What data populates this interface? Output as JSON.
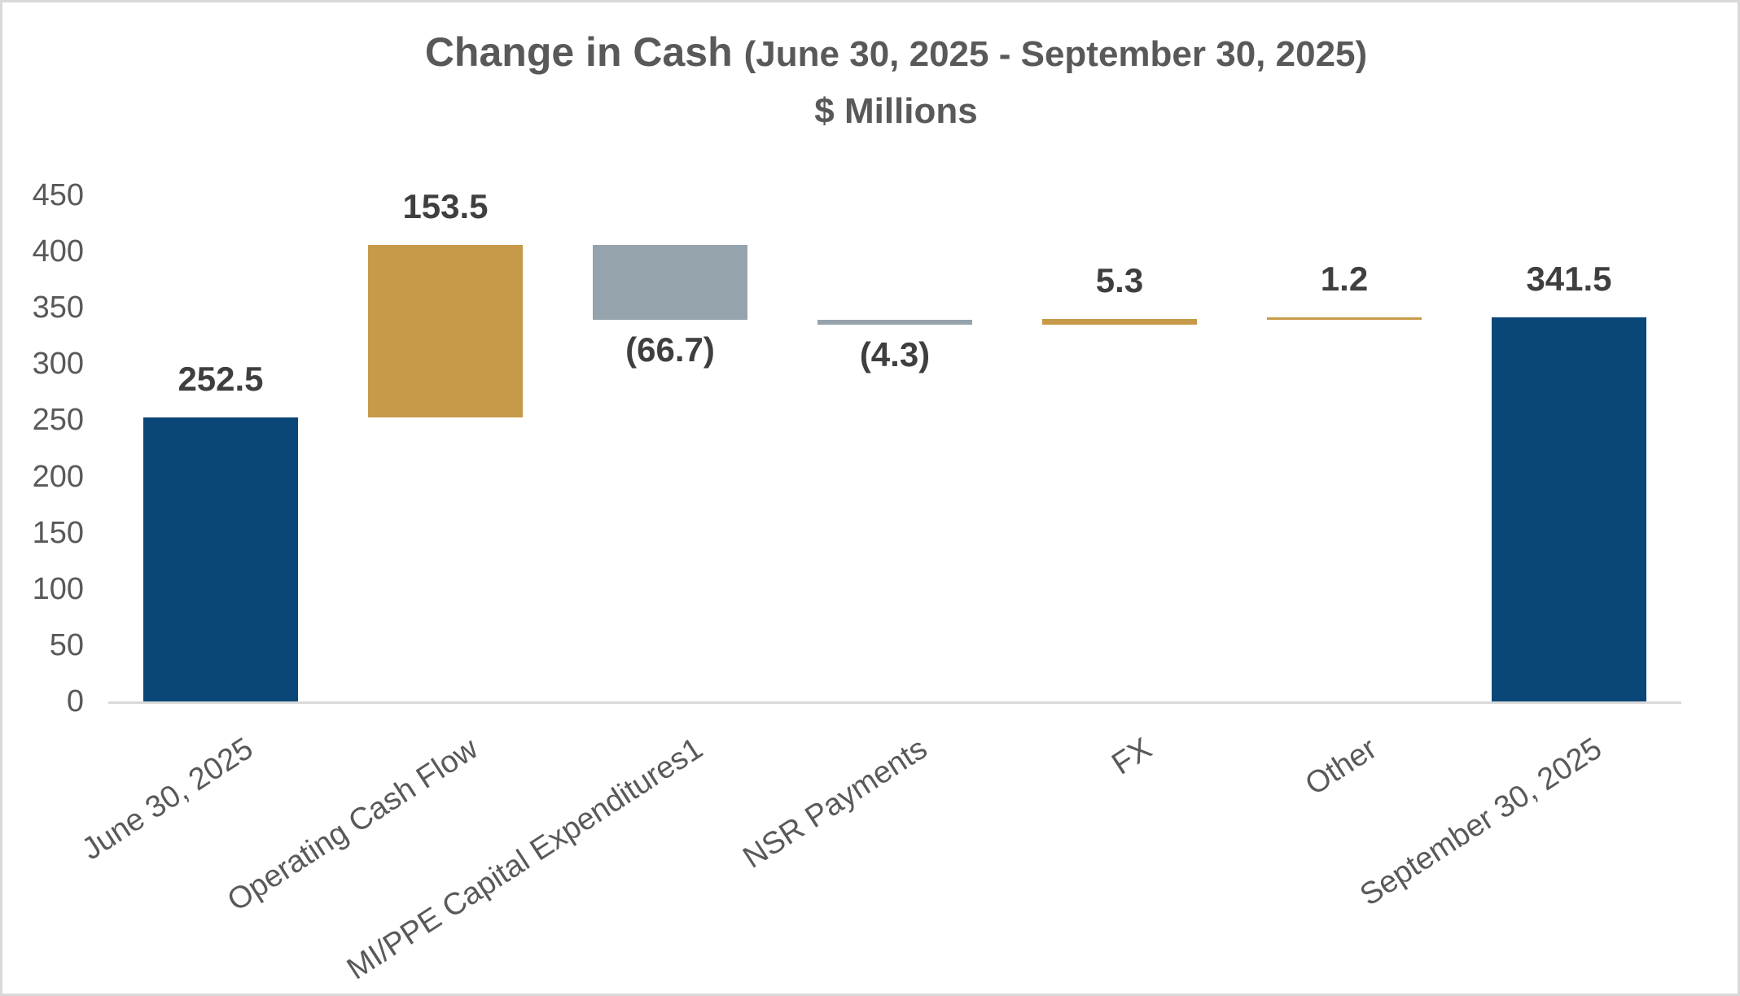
{
  "page": {
    "background_color": "#ffffff",
    "border_color": "#d9d9d9"
  },
  "chart_data": {
    "type": "bar",
    "subtype": "waterfall",
    "title": "Change in Cash",
    "title_period": "(June 30, 2025 - September 30, 2025)",
    "subtitle": "$ Millions",
    "categories": [
      "June 30, 2025",
      "Operating Cash Flow",
      "MI/PPE Capital Expenditures1",
      "NSR Payments",
      "FX",
      "Other",
      "September 30, 2025"
    ],
    "bars": [
      {
        "category": "June 30, 2025",
        "value": 252.5,
        "display_label": "252.5",
        "kind": "total",
        "label_position": "above"
      },
      {
        "category": "Operating Cash Flow",
        "value": 153.5,
        "display_label": "153.5",
        "kind": "increase",
        "label_position": "above"
      },
      {
        "category": "MI/PPE Capital Expenditures1",
        "value": -66.7,
        "display_label": "(66.7)",
        "kind": "decrease",
        "label_position": "below"
      },
      {
        "category": "NSR Payments",
        "value": -4.3,
        "display_label": "(4.3)",
        "kind": "decrease",
        "label_position": "below"
      },
      {
        "category": "FX",
        "value": 5.3,
        "display_label": "5.3",
        "kind": "increase",
        "label_position": "above"
      },
      {
        "category": "Other",
        "value": 1.2,
        "display_label": "1.2",
        "kind": "increase",
        "label_position": "above"
      },
      {
        "category": "September 30, 2025",
        "value": 341.5,
        "display_label": "341.5",
        "kind": "total",
        "label_position": "above"
      }
    ],
    "start_total": 252.5,
    "end_total": 341.5,
    "ylim": [
      0,
      450
    ],
    "ytick_step": 50,
    "yticks": [
      0,
      50,
      100,
      150,
      200,
      250,
      300,
      350,
      400,
      450
    ],
    "gridlines": false,
    "legend": false,
    "colors": {
      "total_bar": "#0a4778",
      "increase_bar": "#c79a49",
      "decrease_bar": "#95a3ac",
      "axis_line": "#d9d9d9",
      "title_text": "#595959",
      "tick_text": "#595959",
      "data_label_text": "#3f3f3f"
    }
  }
}
